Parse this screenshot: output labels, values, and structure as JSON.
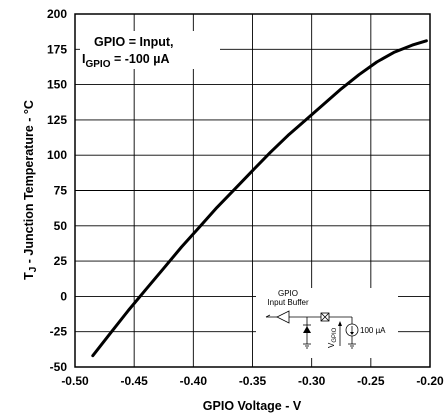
{
  "chart_data": {
    "type": "line",
    "title": "",
    "xlabel": "GPIO Voltage - V",
    "ylabel_main": "T",
    "ylabel_sub": "J",
    "ylabel_rest": " - Junction Temperature - °C",
    "xlim": [
      -0.5,
      -0.2
    ],
    "ylim": [
      -50,
      200
    ],
    "xticks": [
      "-0.50",
      "-0.45",
      "-0.40",
      "-0.35",
      "-0.30",
      "-0.25",
      "-0.20"
    ],
    "yticks": [
      "-50",
      "-25",
      "0",
      "25",
      "50",
      "75",
      "100",
      "125",
      "150",
      "175",
      "200"
    ],
    "grid": true,
    "series": [
      {
        "x": [
          -0.485,
          -0.47,
          -0.455,
          -0.44,
          -0.425,
          -0.41,
          -0.395,
          -0.38,
          -0.365,
          -0.35,
          -0.335,
          -0.32,
          -0.305,
          -0.29,
          -0.275,
          -0.26,
          -0.245,
          -0.23,
          -0.215,
          -0.203
        ],
        "y": [
          -42,
          -26,
          -10,
          5,
          20,
          35,
          49,
          63,
          76,
          89,
          102,
          114,
          125,
          136,
          147,
          157,
          166,
          173,
          178,
          181
        ]
      }
    ],
    "annotation": {
      "line1": "GPIO = Input,",
      "line2_main": "I",
      "line2_sub": "GPIO",
      "line2_rest": " = -100 µA"
    },
    "inset": {
      "label_top": "GPIO",
      "label_bottom": "Input Buffer",
      "v_main": "V",
      "v_sub": "GPIO",
      "current": "100 µA"
    }
  }
}
